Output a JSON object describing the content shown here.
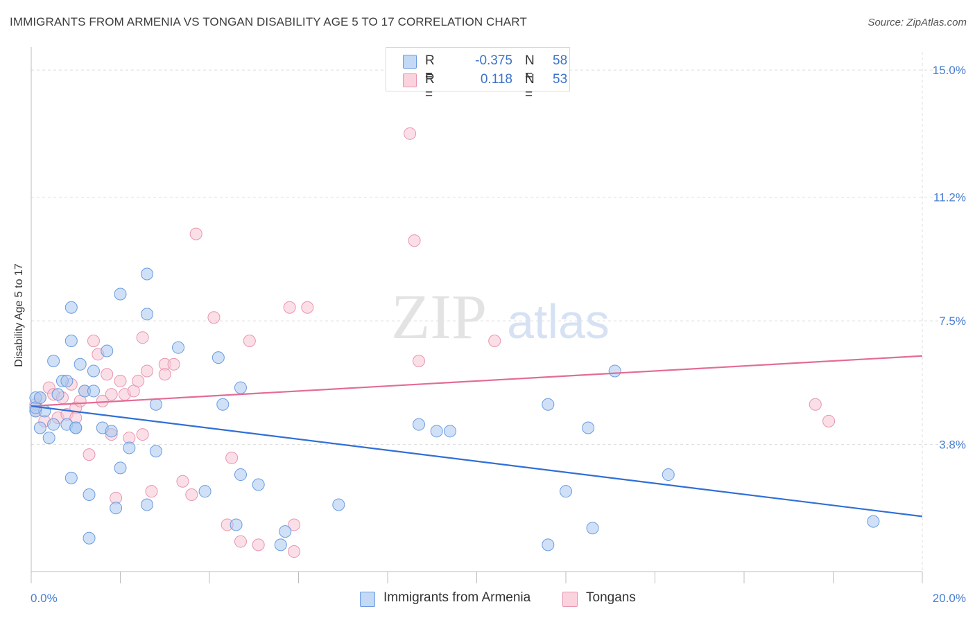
{
  "header": {
    "title": "IMMIGRANTS FROM ARMENIA VS TONGAN DISABILITY AGE 5 TO 17 CORRELATION CHART",
    "source": "Source: ZipAtlas.com"
  },
  "watermark": {
    "zip": "ZIP",
    "atlas": "atlas"
  },
  "legend": {
    "rows": [
      {
        "r_label": "R =",
        "r_value": "-0.375",
        "n_label": "N =",
        "n_value": "58",
        "color": "#aac8f0"
      },
      {
        "r_label": "R =",
        "r_value": "0.118",
        "n_label": "N =",
        "n_value": "53",
        "color": "#f5b8ca"
      }
    ]
  },
  "bottom_legend": {
    "armenia": "Immigrants from Armenia",
    "tongans": "Tongans"
  },
  "colors": {
    "armenia_fill": "#aac8f0",
    "armenia_stroke": "#6a9be0",
    "armenia_line": "#2f6fd6",
    "tongan_fill": "#f7c4d3",
    "tongan_stroke": "#e895b0",
    "tongan_line": "#e46b96",
    "tick_text": "#4a7fd1",
    "grid": "#dcdcdc"
  },
  "chart_data": {
    "type": "scatter",
    "title": "IMMIGRANTS FROM ARMENIA VS TONGAN DISABILITY AGE 5 TO 17 CORRELATION CHART",
    "xlabel": "",
    "ylabel": "Disability Age 5 to 17",
    "xlim": [
      0,
      20
    ],
    "ylim": [
      0,
      15.5
    ],
    "x_tick_labels": [
      "0.0%",
      "20.0%"
    ],
    "y_ticks": [
      3.8,
      7.5,
      11.2,
      15.0
    ],
    "y_tick_labels": [
      "3.8%",
      "7.5%",
      "11.2%",
      "15.0%"
    ],
    "grid": true,
    "legend_position": "top-center",
    "series": [
      {
        "name": "Immigrants from Armenia",
        "points": [
          [
            0.1,
            5.2
          ],
          [
            0.1,
            4.8
          ],
          [
            0.2,
            4.3
          ],
          [
            0.3,
            4.8
          ],
          [
            0.4,
            4.0
          ],
          [
            0.5,
            4.4
          ],
          [
            0.5,
            6.3
          ],
          [
            0.6,
            5.3
          ],
          [
            0.7,
            5.7
          ],
          [
            0.8,
            4.4
          ],
          [
            0.8,
            5.7
          ],
          [
            0.9,
            7.9
          ],
          [
            0.9,
            6.9
          ],
          [
            0.9,
            2.8
          ],
          [
            1.0,
            4.3
          ],
          [
            1.0,
            4.3
          ],
          [
            1.1,
            6.2
          ],
          [
            1.2,
            5.4
          ],
          [
            1.3,
            2.3
          ],
          [
            1.3,
            1.0
          ],
          [
            1.4,
            6.0
          ],
          [
            1.4,
            5.4
          ],
          [
            1.6,
            4.3
          ],
          [
            1.7,
            6.6
          ],
          [
            1.8,
            4.2
          ],
          [
            1.9,
            1.9
          ],
          [
            2.0,
            3.1
          ],
          [
            2.0,
            8.3
          ],
          [
            2.2,
            3.7
          ],
          [
            2.6,
            2.0
          ],
          [
            2.6,
            7.7
          ],
          [
            2.6,
            8.9
          ],
          [
            2.8,
            5.0
          ],
          [
            2.8,
            3.6
          ],
          [
            3.3,
            6.7
          ],
          [
            3.9,
            2.4
          ],
          [
            4.2,
            6.4
          ],
          [
            4.3,
            5.0
          ],
          [
            4.6,
            1.4
          ],
          [
            4.7,
            2.9
          ],
          [
            4.7,
            5.5
          ],
          [
            5.1,
            2.6
          ],
          [
            5.6,
            0.8
          ],
          [
            5.7,
            1.2
          ],
          [
            6.9,
            2.0
          ],
          [
            8.7,
            4.4
          ],
          [
            9.1,
            4.2
          ],
          [
            9.4,
            4.2
          ],
          [
            11.6,
            0.8
          ],
          [
            11.6,
            5.0
          ],
          [
            12.0,
            2.4
          ],
          [
            12.5,
            4.3
          ],
          [
            12.6,
            1.3
          ],
          [
            13.1,
            6.0
          ],
          [
            14.3,
            2.9
          ],
          [
            18.9,
            1.5
          ],
          [
            0.1,
            4.9
          ],
          [
            0.2,
            5.2
          ]
        ],
        "trend": {
          "x": [
            0,
            20
          ],
          "y": [
            4.95,
            1.65
          ]
        }
      },
      {
        "name": "Tongans",
        "points": [
          [
            0.1,
            4.8
          ],
          [
            0.1,
            5.0
          ],
          [
            0.2,
            5.2
          ],
          [
            0.3,
            4.5
          ],
          [
            0.4,
            5.5
          ],
          [
            0.5,
            5.3
          ],
          [
            0.6,
            4.6
          ],
          [
            0.7,
            5.2
          ],
          [
            0.8,
            4.7
          ],
          [
            0.9,
            5.6
          ],
          [
            1.0,
            4.9
          ],
          [
            1.0,
            4.6
          ],
          [
            1.1,
            5.1
          ],
          [
            1.2,
            5.4
          ],
          [
            1.3,
            3.5
          ],
          [
            1.4,
            6.9
          ],
          [
            1.5,
            6.5
          ],
          [
            1.6,
            5.1
          ],
          [
            1.7,
            5.9
          ],
          [
            1.8,
            4.1
          ],
          [
            1.8,
            5.3
          ],
          [
            1.9,
            2.2
          ],
          [
            2.0,
            5.7
          ],
          [
            2.1,
            5.3
          ],
          [
            2.2,
            4.0
          ],
          [
            2.3,
            5.4
          ],
          [
            2.4,
            5.7
          ],
          [
            2.5,
            4.1
          ],
          [
            2.5,
            7.0
          ],
          [
            2.6,
            6.0
          ],
          [
            2.7,
            2.4
          ],
          [
            3.0,
            6.2
          ],
          [
            3.0,
            5.9
          ],
          [
            3.2,
            6.2
          ],
          [
            3.4,
            2.7
          ],
          [
            3.6,
            2.3
          ],
          [
            3.7,
            10.1
          ],
          [
            4.1,
            7.6
          ],
          [
            4.4,
            1.4
          ],
          [
            4.5,
            3.4
          ],
          [
            4.7,
            0.9
          ],
          [
            4.9,
            6.9
          ],
          [
            5.1,
            0.8
          ],
          [
            5.8,
            7.9
          ],
          [
            5.9,
            0.6
          ],
          [
            5.9,
            1.4
          ],
          [
            6.2,
            7.9
          ],
          [
            8.5,
            13.1
          ],
          [
            8.6,
            9.9
          ],
          [
            8.7,
            6.3
          ],
          [
            10.4,
            6.9
          ],
          [
            17.6,
            5.0
          ],
          [
            17.9,
            4.5
          ]
        ],
        "trend": {
          "x": [
            0,
            20
          ],
          "y": [
            4.95,
            6.45
          ]
        }
      }
    ]
  }
}
